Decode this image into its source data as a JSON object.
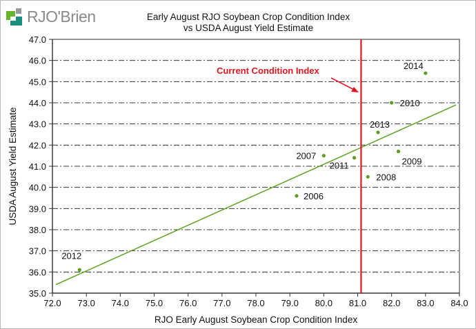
{
  "logo": {
    "text": "RJO'Brien"
  },
  "chart_data": {
    "type": "scatter",
    "title": "Early August RJO Soybean Crop Condition Index",
    "subtitle": "vs USDA August Yield Estimate",
    "xlabel": "RJO Early August Soybean Crop Condition Index",
    "ylabel": "USDA August Yield Estimate",
    "xlim": [
      72.0,
      84.0
    ],
    "ylim": [
      35.0,
      47.0
    ],
    "xticks": [
      "72.0",
      "73.0",
      "74.0",
      "75.0",
      "76.0",
      "77.0",
      "78.0",
      "79.0",
      "80.0",
      "81.0",
      "82.0",
      "83.0",
      "84.0"
    ],
    "yticks": [
      "35.0",
      "36.0",
      "37.0",
      "38.0",
      "39.0",
      "40.0",
      "41.0",
      "42.0",
      "43.0",
      "44.0",
      "45.0",
      "46.0",
      "47.0"
    ],
    "grid": "horizontal dash-dot",
    "points": [
      {
        "label": "2006",
        "x": 79.2,
        "y": 39.6
      },
      {
        "label": "2007",
        "x": 80.0,
        "y": 41.5
      },
      {
        "label": "2008",
        "x": 81.3,
        "y": 40.5
      },
      {
        "label": "2009",
        "x": 82.2,
        "y": 41.7
      },
      {
        "label": "2010",
        "x": 82.0,
        "y": 44.0
      },
      {
        "label": "2011",
        "x": 80.9,
        "y": 41.4
      },
      {
        "label": "2012",
        "x": 72.8,
        "y": 36.1
      },
      {
        "label": "2013",
        "x": 81.6,
        "y": 42.6
      },
      {
        "label": "2014",
        "x": 83.0,
        "y": 45.4
      }
    ],
    "trendline": {
      "x": [
        72.1,
        83.9
      ],
      "y": [
        35.4,
        43.9
      ]
    },
    "current_condition": {
      "x": 81.1,
      "label": "Current Condition Index"
    },
    "colors": {
      "points": "#5a9e1e",
      "trend": "#5aa31e",
      "current": "#e0141e"
    }
  }
}
